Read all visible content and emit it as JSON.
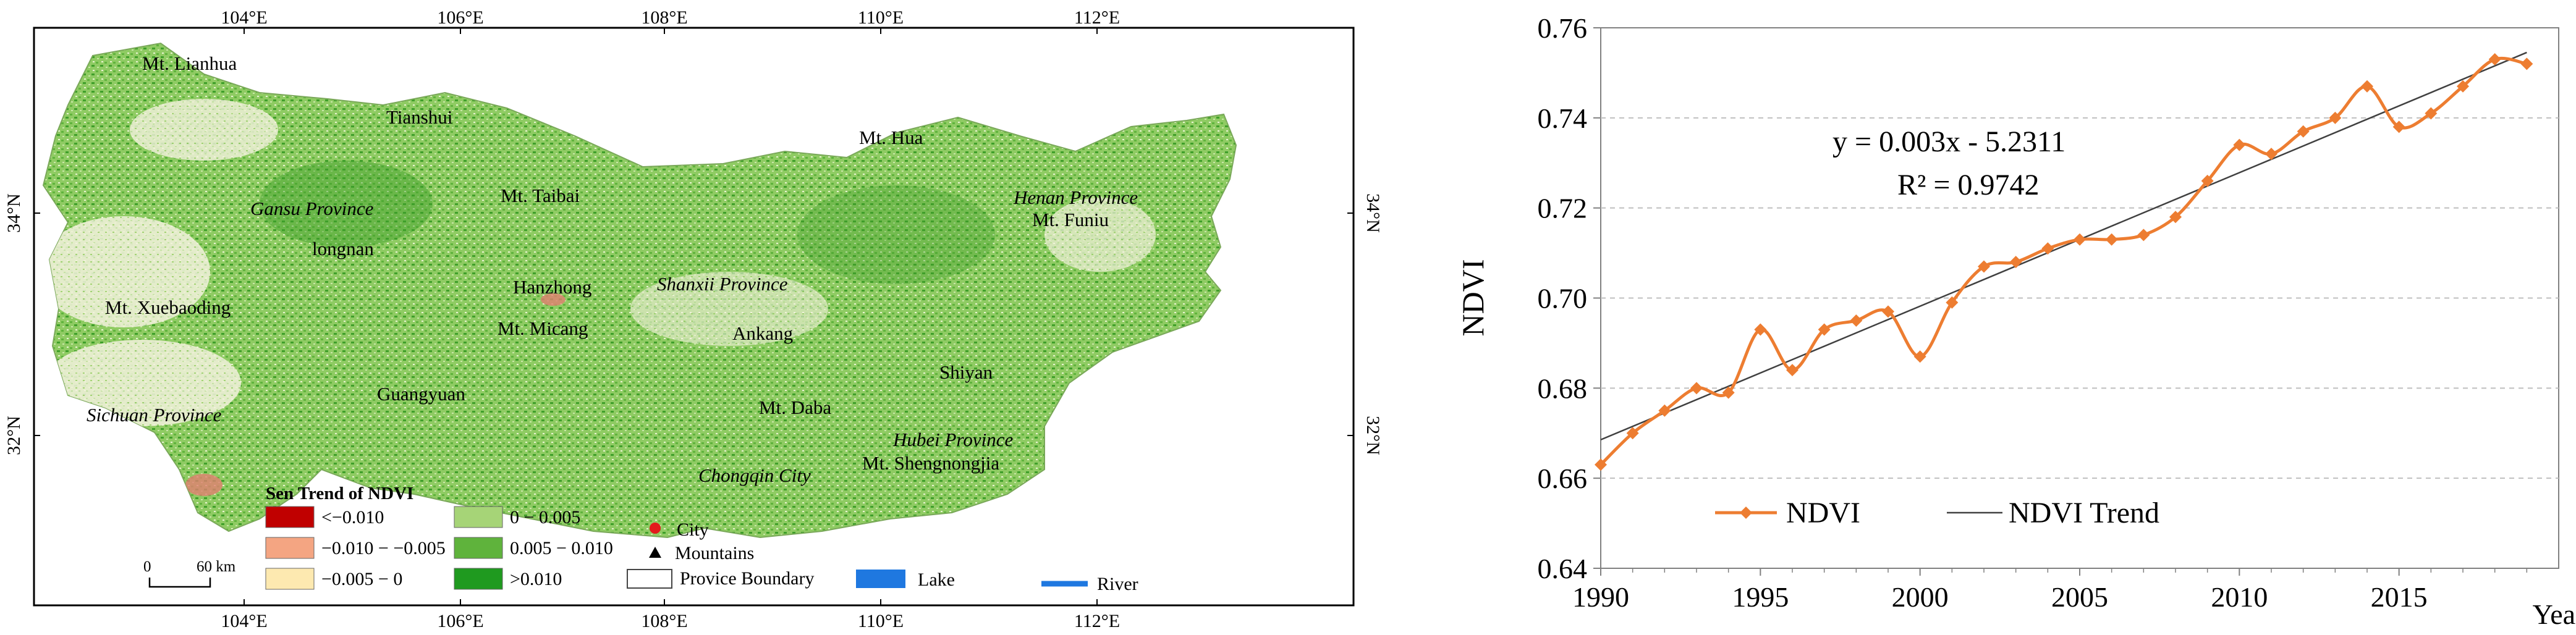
{
  "map": {
    "lon_ticks": [
      "104°E",
      "106°E",
      "108°E",
      "110°E",
      "112°E"
    ],
    "lat_ticks": [
      "34°N",
      "32°N"
    ],
    "places": [
      {
        "name": "Mt. Lianhua",
        "style": "normal"
      },
      {
        "name": "Tianshui",
        "style": "normal"
      },
      {
        "name": "Mt. Hua",
        "style": "normal"
      },
      {
        "name": "Gansu Province",
        "style": "italic"
      },
      {
        "name": "Mt. Taibai",
        "style": "normal"
      },
      {
        "name": "Henan Province",
        "style": "italic"
      },
      {
        "name": "Mt. Funiu",
        "style": "normal"
      },
      {
        "name": "longnan",
        "style": "normal"
      },
      {
        "name": "Hanzhong",
        "style": "normal"
      },
      {
        "name": "Shanxii Province",
        "style": "italic"
      },
      {
        "name": "Mt. Xuebaoding",
        "style": "normal"
      },
      {
        "name": "Mt. Micang",
        "style": "normal"
      },
      {
        "name": "Ankang",
        "style": "normal"
      },
      {
        "name": "Shiyan",
        "style": "normal"
      },
      {
        "name": "Guangyuan",
        "style": "normal"
      },
      {
        "name": "Mt. Daba",
        "style": "normal"
      },
      {
        "name": "Sichuan Province",
        "style": "italic"
      },
      {
        "name": "Hubei Province",
        "style": "italic"
      },
      {
        "name": "Chongqin City",
        "style": "italic"
      },
      {
        "name": "Mt. Shengnongjia",
        "style": "normal"
      }
    ],
    "legend": {
      "title": "Sen Trend of NDVI",
      "classes": [
        {
          "label": "<−0.010",
          "color": "#c00000"
        },
        {
          "label": "−0.010 − −0.005",
          "color": "#f4a582"
        },
        {
          "label": "−0.005 − 0",
          "color": "#fde9b0"
        },
        {
          "label": "0 − 0.005",
          "color": "#a6d477"
        },
        {
          "label": "0.005 − 0.010",
          "color": "#5fb33c"
        },
        {
          "label": ">0.010",
          "color": "#1f9a1f"
        }
      ],
      "city": "City",
      "mountains": "Mountains",
      "boundary": "Provice Boundary",
      "lake": "Lake",
      "river": "River",
      "city_color": "#e31a1c",
      "lake_color": "#1f78e0",
      "river_color": "#1f78e0"
    },
    "scale_bar": {
      "zero": "0",
      "length": "60 km"
    }
  },
  "chart_data": {
    "type": "line",
    "x": [
      1990,
      1991,
      1992,
      1993,
      1994,
      1995,
      1996,
      1997,
      1998,
      1999,
      2000,
      2001,
      2002,
      2003,
      2004,
      2005,
      2006,
      2007,
      2008,
      2009,
      2010,
      2011,
      2012,
      2013,
      2014,
      2015,
      2016,
      2017,
      2018,
      2019
    ],
    "series": [
      {
        "name": "NDVI",
        "color": "#ed7d31",
        "marker": "diamond",
        "smooth": true,
        "values": [
          0.663,
          0.67,
          0.675,
          0.68,
          0.679,
          0.693,
          0.684,
          0.693,
          0.695,
          0.697,
          0.687,
          0.699,
          0.707,
          0.708,
          0.711,
          0.713,
          0.713,
          0.714,
          0.718,
          0.726,
          0.734,
          0.732,
          0.737,
          0.74,
          0.747,
          0.738,
          0.741,
          0.747,
          0.753,
          0.752
        ]
      },
      {
        "name": "NDVI Trend",
        "color": "#404040",
        "type": "linear-trend"
      }
    ],
    "xlim": [
      1990,
      2020
    ],
    "ylim": [
      0.64,
      0.76
    ],
    "x_ticks": [
      "1990",
      "1995",
      "2000",
      "2005",
      "2010",
      "2015"
    ],
    "y_ticks": [
      "0.64",
      "0.66",
      "0.68",
      "0.70",
      "0.72",
      "0.74",
      "0.76"
    ],
    "xlabel": "Year",
    "ylabel": "NDVI",
    "equation": "y = 0.003x - 5.2311",
    "r_squared": "R² = 0.9742",
    "grid": "horizontal-dashed",
    "legend_position": "bottom-left"
  }
}
